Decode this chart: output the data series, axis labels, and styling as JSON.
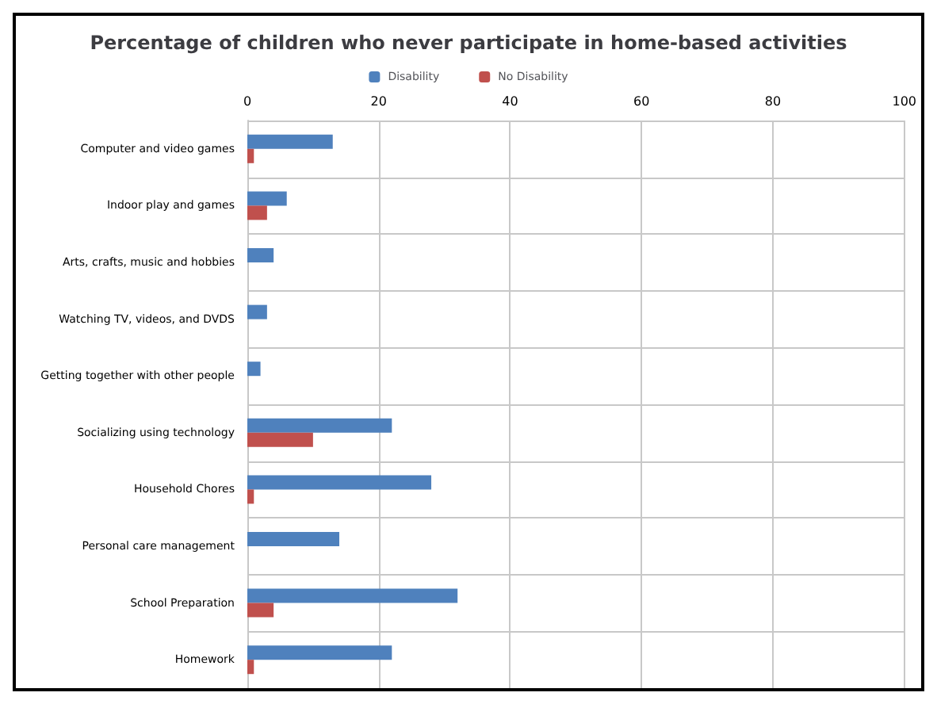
{
  "chart_data": {
    "type": "bar",
    "orientation": "horizontal",
    "title": "Percentage of children who never participate in home-based activities",
    "categories": [
      "Computer and video games",
      "Indoor play and games",
      "Arts, crafts, music and hobbies",
      "Watching TV, videos, and DVDS",
      "Getting together with other people",
      "Socializing using technology",
      "Household Chores",
      "Personal care management",
      "School Preparation",
      "Homework"
    ],
    "series": [
      {
        "name": "Disability",
        "color": "#4f81bd",
        "values": [
          13,
          6,
          4,
          3,
          2,
          22,
          28,
          14,
          32,
          22
        ]
      },
      {
        "name": "No Disability",
        "color": "#c0504d",
        "values": [
          1,
          3,
          0,
          0,
          0,
          10,
          1,
          0,
          4,
          1
        ]
      }
    ],
    "xlim": [
      0,
      100
    ],
    "xticks": [
      0,
      20,
      40,
      60,
      80,
      100
    ],
    "grid": true,
    "legend": "top"
  }
}
